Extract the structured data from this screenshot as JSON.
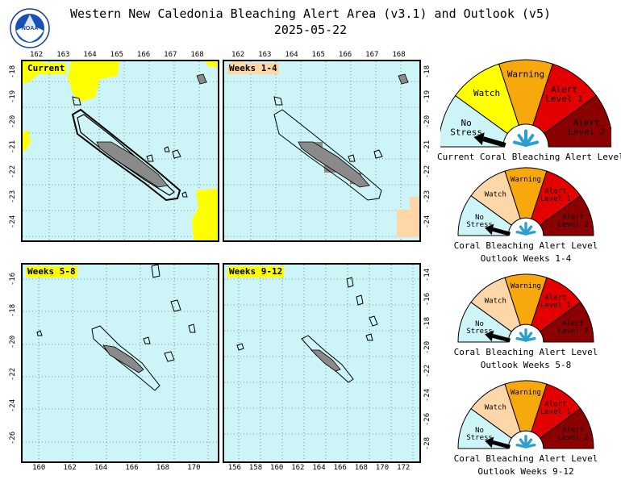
{
  "header": {
    "title": "Western New Caledonia Bleaching Alert Area (v3.1) and Outlook (v5)",
    "date": "2025-05-22"
  },
  "colors": {
    "ocean": "#cdf4f7",
    "no_stress": "#cdf4f7",
    "watch": "#ffff00",
    "watch_light": "#fed7a8",
    "warning": "#f6a80c",
    "alert_level_1": "#e20000",
    "alert_level_2": "#8b0000",
    "land": "#8a8a8a"
  },
  "panels": [
    {
      "label": "Current",
      "x_ticks": [
        "162",
        "163",
        "164",
        "165",
        "166",
        "167",
        "168"
      ],
      "y_ticks": [
        "18",
        "19",
        "20",
        "21",
        "22",
        "23",
        "24"
      ]
    },
    {
      "label": "Weeks 1-4",
      "x_ticks": [
        "162",
        "163",
        "164",
        "165",
        "166",
        "167",
        "168"
      ],
      "y_ticks": [
        "18",
        "19",
        "20",
        "21",
        "22",
        "23",
        "24"
      ]
    },
    {
      "label": "Weeks 5-8",
      "x_ticks": [
        "160",
        "162",
        "164",
        "166",
        "168",
        "170"
      ],
      "y_ticks": [
        "16",
        "18",
        "20",
        "22",
        "24",
        "26"
      ]
    },
    {
      "label": "Weeks 9-12",
      "x_ticks": [
        "156",
        "158",
        "160",
        "162",
        "164",
        "166",
        "168",
        "170",
        "172"
      ],
      "y_ticks": [
        "14",
        "16",
        "18",
        "20",
        "22",
        "24",
        "26",
        "28"
      ]
    }
  ],
  "gauge_labels": {
    "no_stress": "No Stress",
    "watch": "Watch",
    "warning": "Warning",
    "alert1": "Alert Level 1",
    "alert2": "Alert Level 2"
  },
  "gauges": [
    {
      "caption1": "Current Coral Bleaching Alert Level",
      "caption2": "",
      "level": "No Stress"
    },
    {
      "caption1": "Coral Bleaching Alert Level",
      "caption2": "Outlook Weeks 1-4",
      "level": "No Stress"
    },
    {
      "caption1": "Coral Bleaching Alert Level",
      "caption2": "Outlook Weeks 5-8",
      "level": "No Stress"
    },
    {
      "caption1": "Coral Bleaching Alert Level",
      "caption2": "Outlook Weeks 9-12",
      "level": "No Stress"
    }
  ]
}
